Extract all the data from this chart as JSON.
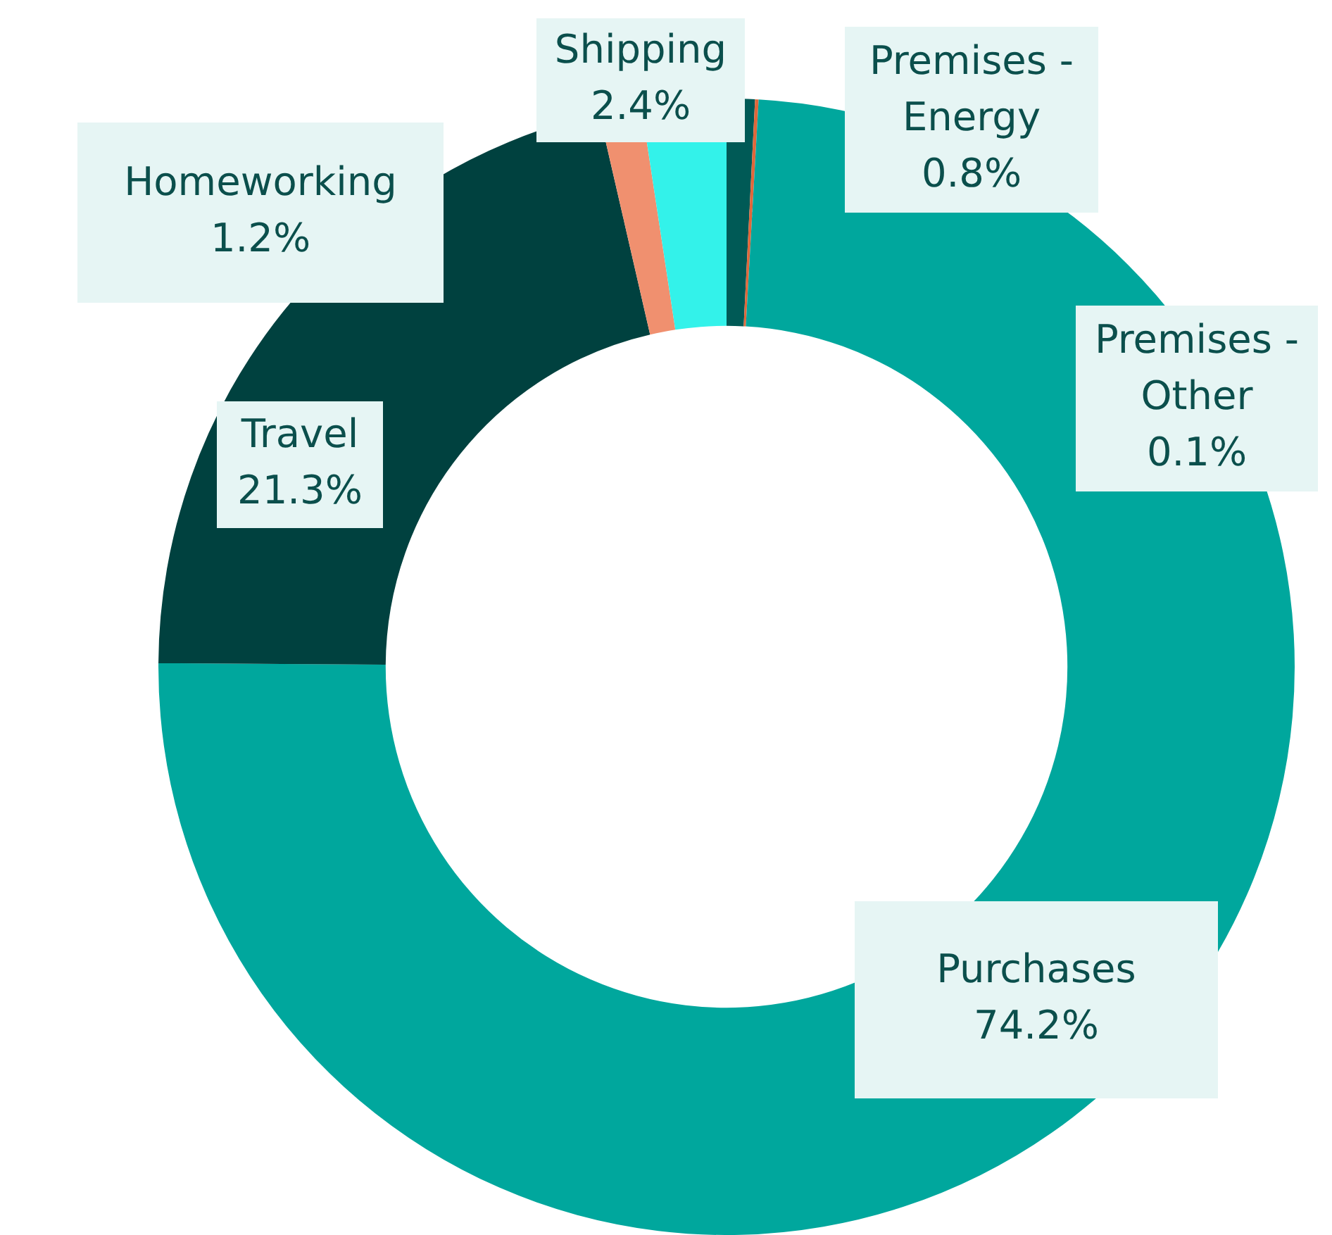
{
  "chart_data": {
    "type": "donut",
    "categories": [
      "Premises - Energy",
      "Premises - Other",
      "Purchases",
      "Travel",
      "Homeworking",
      "Shipping"
    ],
    "values": [
      0.8,
      0.1,
      74.2,
      21.3,
      1.2,
      2.4
    ],
    "colors": [
      "#005a56",
      "#e0673a",
      "#00a79d",
      "#00413f",
      "#f0906f",
      "#33f2ea"
    ],
    "value_labels": [
      "0.8%",
      "0.1%",
      "74.2%",
      "21.3%",
      "1.2%",
      "2.4%"
    ],
    "legend": false
  }
}
